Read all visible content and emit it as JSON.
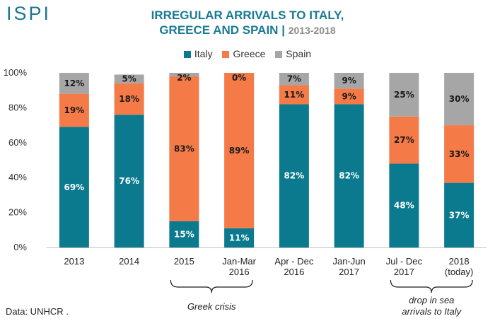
{
  "brand": {
    "logo_text": "ISPI"
  },
  "header": {
    "title_line1": "IRREGULAR ARRIVALS TO ITALY,",
    "title_line2": "GREECE AND SPAIN",
    "title_separator": "|",
    "title_years": "2013-2018"
  },
  "colors": {
    "italy": "#0b7a8f",
    "greece": "#f47a48",
    "spain": "#a6a6a6",
    "title": "#197a93"
  },
  "chart_data": {
    "type": "bar",
    "stacked": true,
    "title": "IRREGULAR ARRIVALS TO ITALY, GREECE AND SPAIN | 2013-2018",
    "xlabel": "",
    "ylabel": "",
    "ylim": [
      0,
      100
    ],
    "yticks": [
      0,
      20,
      40,
      60,
      80,
      100
    ],
    "ytick_labels": [
      "0%",
      "20%",
      "40%",
      "60%",
      "80%",
      "100%"
    ],
    "grid": false,
    "legend_position": "top-center",
    "categories": [
      [
        "2013"
      ],
      [
        "2014"
      ],
      [
        "2015"
      ],
      [
        "Jan-Mar",
        "2016"
      ],
      [
        "Apr - Dec",
        "2016"
      ],
      [
        "Jan-Jun",
        "2017"
      ],
      [
        "Jul - Dec",
        "2017"
      ],
      [
        "2018",
        "(today)"
      ]
    ],
    "series": [
      {
        "name": "Italy",
        "key": "italy",
        "values": [
          69,
          76,
          15,
          11,
          82,
          82,
          48,
          37
        ],
        "labels": [
          "69%",
          "76%",
          "15%",
          "11%",
          "82%",
          "82%",
          "48%",
          "37%"
        ]
      },
      {
        "name": "Greece",
        "key": "greece",
        "values": [
          19,
          18,
          83,
          89,
          11,
          9,
          27,
          33
        ],
        "labels": [
          "19%",
          "18%",
          "83%",
          "89%",
          "11%",
          "9%",
          "27%",
          "33%"
        ]
      },
      {
        "name": "Spain",
        "key": "spain",
        "values": [
          12,
          5,
          2,
          0,
          7,
          9,
          25,
          30
        ],
        "labels": [
          "12%",
          "5%",
          "2%",
          "0%",
          "7%",
          "9%",
          "25%",
          "30%"
        ]
      }
    ],
    "annotations": [
      {
        "text": [
          "Greek crisis"
        ],
        "span_categories": [
          2,
          3
        ]
      },
      {
        "text": [
          "drop in sea",
          "arrivals to Italy"
        ],
        "span_categories": [
          6,
          7
        ]
      }
    ]
  },
  "footer": {
    "source": "Data: UNHCR ."
  }
}
